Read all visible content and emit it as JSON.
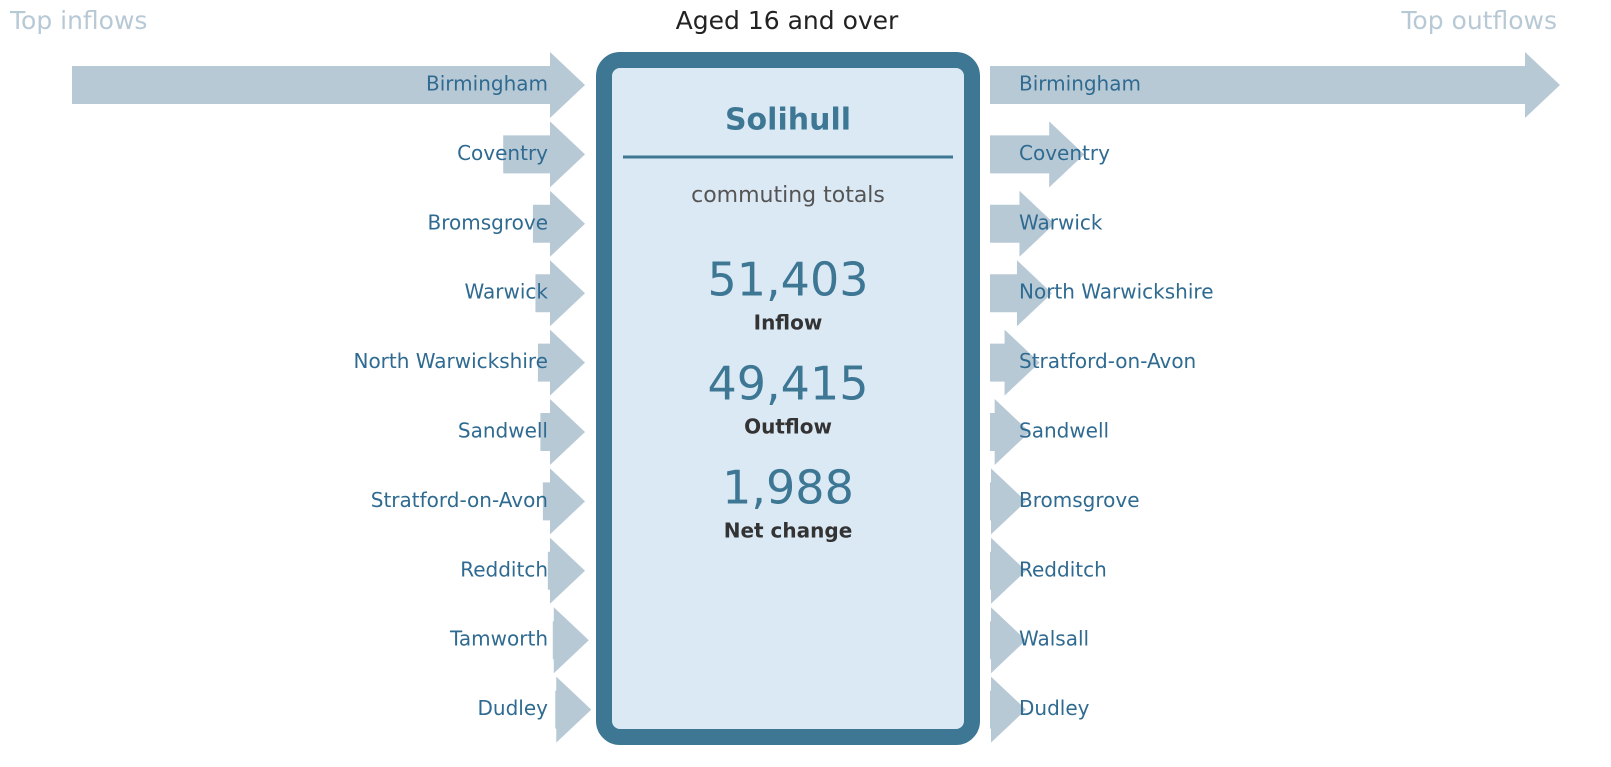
{
  "title": "Aged 16 and over",
  "left_label": "Top inflows",
  "right_label": "Top outflows",
  "center": {
    "name": "Solihull",
    "subtitle": "commuting totals",
    "stats": [
      {
        "value": "51,403",
        "label": "Inflow"
      },
      {
        "value": "49,415",
        "label": "Outflow"
      },
      {
        "value": "1,988",
        "label": "Net change"
      }
    ]
  },
  "inflows": [
    {
      "name": "Birmingham",
      "value": 20700
    },
    {
      "name": "Coventry",
      "value": 3300
    },
    {
      "name": "Bromsgrove",
      "value": 2100
    },
    {
      "name": "Warwick",
      "value": 2000
    },
    {
      "name": "North Warwickshire",
      "value": 1900
    },
    {
      "name": "Sandwell",
      "value": 1800
    },
    {
      "name": "Stratford-on-Avon",
      "value": 1700
    },
    {
      "name": "Redditch",
      "value": 1500
    },
    {
      "name": "Tamworth",
      "value": 1300
    },
    {
      "name": "Dudley",
      "value": 1200
    }
  ],
  "outflows": [
    {
      "name": "Birmingham",
      "value": 23000
    },
    {
      "name": "Coventry",
      "value": 3800
    },
    {
      "name": "Warwick",
      "value": 2600
    },
    {
      "name": "North Warwickshire",
      "value": 2500
    },
    {
      "name": "Stratford-on-Avon",
      "value": 2000
    },
    {
      "name": "Sandwell",
      "value": 1600
    },
    {
      "name": "Bromsgrove",
      "value": 1400
    },
    {
      "name": "Redditch",
      "value": 1300
    },
    {
      "name": "Walsall",
      "value": 1200
    },
    {
      "name": "Dudley",
      "value": 1100
    }
  ]
}
